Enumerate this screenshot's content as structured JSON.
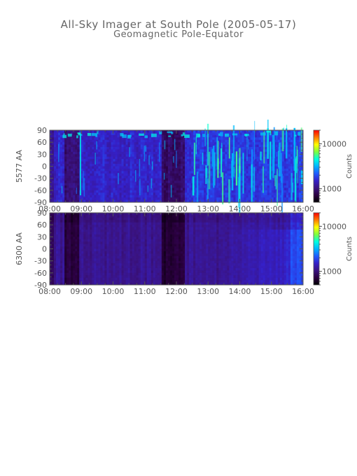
{
  "title": "All-Sky Imager at South Pole (2005-05-17)",
  "subtitle": "Geomagnetic Pole-Equator",
  "colors": {
    "axis": "#555555",
    "colormap": [
      "#000000",
      "#2b0040",
      "#3a1380",
      "#3520c8",
      "#1f5cff",
      "#00b4ff",
      "#00ffe0",
      "#7cff40",
      "#ffff00",
      "#ff7a00",
      "#ff0000"
    ]
  },
  "chart_data": [
    {
      "type": "heatmap",
      "ylabel": "5577 AA",
      "colorbar_label": "Counts",
      "colorbar_ticks": [
        "10000",
        "1000"
      ],
      "colorbar_tick_values": [
        10000,
        1000
      ],
      "colorbar_range": [
        500,
        20000
      ],
      "colorbar_log": true,
      "x_tick_labels": [
        "08:00",
        "09:00",
        "10:00",
        "11:00",
        "12:00",
        "13:00",
        "14:00",
        "15:00",
        "16:00"
      ],
      "x_range_hours": [
        8,
        16
      ],
      "y_tick_labels": [
        "90",
        "60",
        "30",
        "0",
        "-30",
        "-60",
        "-90"
      ],
      "y_ticks": [
        90,
        60,
        30,
        0,
        -30,
        -60,
        -90
      ],
      "y_range": [
        -90,
        90
      ]
    },
    {
      "type": "heatmap",
      "ylabel": "6300 AA",
      "colorbar_label": "Counts",
      "colorbar_ticks": [
        "10000",
        "1000"
      ],
      "colorbar_tick_values": [
        10000,
        1000
      ],
      "colorbar_range": [
        500,
        20000
      ],
      "colorbar_log": true,
      "x_tick_labels": [
        "08:00",
        "09:00",
        "10:00",
        "11:00",
        "12:00",
        "13:00",
        "14:00",
        "15:00",
        "16:00"
      ],
      "x_range_hours": [
        8,
        16
      ],
      "y_tick_labels": [
        "90",
        "60",
        "30",
        "0",
        "-30",
        "-60",
        "-90"
      ],
      "y_ticks": [
        90,
        60,
        30,
        0,
        -30,
        -60,
        -90
      ],
      "y_range": [
        -90,
        90
      ]
    }
  ]
}
